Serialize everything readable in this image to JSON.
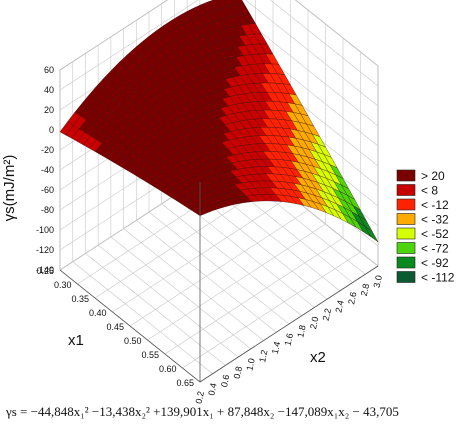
{
  "chart_data": {
    "type": "surface3d",
    "surface_color": "#cc1a0f",
    "x1": {
      "label": "x1",
      "range": [
        0.25,
        0.65
      ],
      "ticks": [
        "0.25",
        "0.30",
        "0.35",
        "0.40",
        "0.45",
        "0.50",
        "0.55",
        "0.60",
        "0.65"
      ]
    },
    "x2": {
      "label": "x2",
      "range": [
        0.2,
        3.0
      ],
      "ticks": [
        "0.2",
        "0.4",
        "0.6",
        "0.8",
        "1.0",
        "1.2",
        "1.4",
        "1.6",
        "1.8",
        "2.0",
        "2.2",
        "2.4",
        "2.6",
        "2.8",
        "3.0"
      ]
    },
    "z": {
      "label": "γs(mJ/m²)",
      "range": [
        -140,
        60
      ],
      "ticks": [
        "60",
        "40",
        "20",
        "0",
        "-20",
        "-40",
        "-60",
        "-80",
        "-100",
        "-120",
        "-140"
      ]
    },
    "legend": [
      {
        "label": "> 20",
        "color": "#7a0000"
      },
      {
        "label": "< 8",
        "color": "#c80000"
      },
      {
        "label": "< -12",
        "color": "#ff2200"
      },
      {
        "label": "< -32",
        "color": "#ffaa00"
      },
      {
        "label": "< -52",
        "color": "#d6ff00"
      },
      {
        "label": "< -72",
        "color": "#4cd60a"
      },
      {
        "label": "< -92",
        "color": "#0a8a1e"
      },
      {
        "label": "< -112",
        "color": "#0a5a32"
      }
    ],
    "equation": "γs = −44,848x₁² −13,438x₂² +139,901x₁ + 87,848x₂ −147,089x₁x₂ − 43,705",
    "coefficients": {
      "x1_sq": -44.848,
      "x2_sq": -13.438,
      "x1": 139.901,
      "x2": 87.848,
      "x1x2": -147.089,
      "const": -43.705
    }
  }
}
